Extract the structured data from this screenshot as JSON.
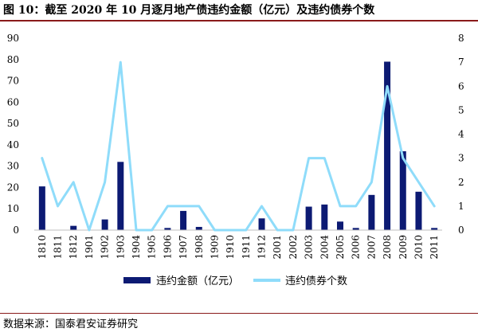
{
  "title": "图 10：截至 2020 年 10 月逐月地产债违约金额（亿元）及违约债券个数",
  "source": "数据来源：国泰君安证券研究",
  "colors": {
    "bar": "#0c1a73",
    "line": "#8fdcfa",
    "rule": "#8a1a1a",
    "axis": "#bfbfbf"
  },
  "chart_data": {
    "type": "bar+line",
    "categories": [
      "1810",
      "1811",
      "1812",
      "1901",
      "1902",
      "1903",
      "1904",
      "1905",
      "1906",
      "1907",
      "1908",
      "1909",
      "1910",
      "1911",
      "1912",
      "2001",
      "2002",
      "2003",
      "2004",
      "2005",
      "2006",
      "2007",
      "2008",
      "2009",
      "2010",
      "2011"
    ],
    "series": [
      {
        "name": "违约金额（亿元）",
        "type": "bar",
        "axis": "left",
        "values": [
          20.5,
          0,
          2,
          0,
          5,
          32,
          0,
          0,
          1,
          9,
          1.5,
          0,
          0,
          0,
          5.5,
          0,
          0,
          11,
          12,
          4,
          1,
          16.5,
          79,
          37,
          18,
          1
        ]
      },
      {
        "name": "违约债券个数",
        "type": "line",
        "axis": "right",
        "values": [
          3,
          1,
          2,
          0,
          2,
          7,
          0,
          0,
          1,
          1,
          1,
          0,
          0,
          0,
          1,
          0,
          0,
          3,
          3,
          1,
          1,
          2,
          6,
          3,
          2,
          1
        ]
      }
    ],
    "y_left": {
      "min": 0,
      "max": 90,
      "ticks": [
        0,
        10,
        20,
        30,
        40,
        50,
        60,
        70,
        80,
        90
      ]
    },
    "y_right": {
      "min": 0,
      "max": 8,
      "ticks": [
        0,
        1,
        2,
        3,
        4,
        5,
        6,
        7,
        8
      ]
    },
    "legend": {
      "position": "bottom"
    },
    "grid": false
  }
}
